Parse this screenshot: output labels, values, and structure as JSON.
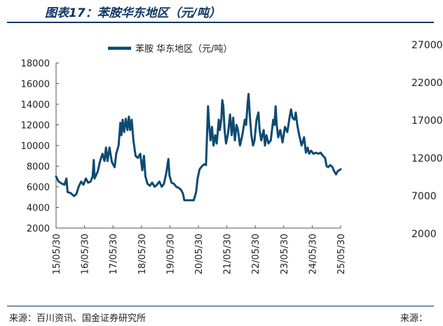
{
  "figure": {
    "title": "图表17：苯胺华东地区（元/吨）",
    "source_left": "来源：百川资讯、国金证券研究所",
    "source_right": "来源："
  },
  "clipped_neighbor_ticks": [
    "27000",
    "22000",
    "17000",
    "12000",
    "7000",
    "2000"
  ],
  "colors": {
    "series": "#0d4a72",
    "rule": "#0d3766"
  },
  "chart_data": {
    "type": "line",
    "title": "",
    "xlabel": "",
    "ylabel": "",
    "ylim": [
      2000,
      18000
    ],
    "yticks": [
      2000,
      4000,
      6000,
      8000,
      10000,
      12000,
      14000,
      16000,
      18000
    ],
    "xlim": [
      "2015-05-30",
      "2025-05-30"
    ],
    "xticks": [
      "15/05/30",
      "16/05/30",
      "17/05/30",
      "18/05/30",
      "19/05/30",
      "20/05/30",
      "21/05/30",
      "22/05/30",
      "23/05/30",
      "24/05/30",
      "25/05/30"
    ],
    "grid": false,
    "legend_position": "top-center",
    "series": [
      {
        "name": "苯胺 华东地区（元/吨）",
        "points": [
          [
            "2015-05-30",
            7000
          ],
          [
            "2015-07-01",
            6500
          ],
          [
            "2015-08-15",
            6300
          ],
          [
            "2015-09-15",
            6200
          ],
          [
            "2015-10-10",
            6800
          ],
          [
            "2015-10-25",
            5500
          ],
          [
            "2015-12-01",
            5400
          ],
          [
            "2016-01-15",
            5100
          ],
          [
            "2016-02-15",
            5300
          ],
          [
            "2016-03-15",
            6000
          ],
          [
            "2016-04-15",
            6500
          ],
          [
            "2016-05-15",
            6200
          ],
          [
            "2016-06-15",
            6800
          ],
          [
            "2016-07-15",
            6400
          ],
          [
            "2016-08-15",
            6500
          ],
          [
            "2016-09-10",
            7000
          ],
          [
            "2016-09-25",
            8600
          ],
          [
            "2016-10-05",
            6800
          ],
          [
            "2016-11-15",
            7500
          ],
          [
            "2016-12-15",
            8500
          ],
          [
            "2017-01-15",
            9200
          ],
          [
            "2017-02-10",
            8500
          ],
          [
            "2017-03-01",
            9800
          ],
          [
            "2017-03-20",
            8500
          ],
          [
            "2017-04-15",
            9800
          ],
          [
            "2017-05-15",
            8400
          ],
          [
            "2017-06-20",
            7900
          ],
          [
            "2017-07-10",
            9200
          ],
          [
            "2017-08-10",
            10000
          ],
          [
            "2017-09-01",
            12200
          ],
          [
            "2017-09-15",
            11000
          ],
          [
            "2017-10-01",
            12500
          ],
          [
            "2017-10-20",
            11300
          ],
          [
            "2017-11-10",
            12600
          ],
          [
            "2017-12-01",
            11500
          ],
          [
            "2017-12-20",
            12800
          ],
          [
            "2018-01-05",
            11500
          ],
          [
            "2018-01-25",
            12500
          ],
          [
            "2018-02-15",
            10500
          ],
          [
            "2018-03-15",
            9000
          ],
          [
            "2018-04-15",
            8800
          ],
          [
            "2018-05-15",
            9200
          ],
          [
            "2018-06-10",
            7600
          ],
          [
            "2018-07-01",
            9000
          ],
          [
            "2018-07-20",
            7000
          ],
          [
            "2018-08-15",
            6300
          ],
          [
            "2018-09-15",
            6100
          ],
          [
            "2018-10-15",
            6400
          ],
          [
            "2018-11-15",
            6000
          ],
          [
            "2018-12-15",
            6200
          ],
          [
            "2019-01-15",
            6500
          ],
          [
            "2019-02-15",
            6000
          ],
          [
            "2019-03-15",
            6300
          ],
          [
            "2019-04-15",
            7400
          ],
          [
            "2019-05-10",
            8700
          ],
          [
            "2019-05-25",
            7100
          ],
          [
            "2019-06-20",
            6400
          ],
          [
            "2019-07-20",
            6300
          ],
          [
            "2019-08-20",
            6000
          ],
          [
            "2019-09-20",
            5900
          ],
          [
            "2019-10-20",
            5700
          ],
          [
            "2019-11-15",
            5300
          ],
          [
            "2019-12-01",
            4700
          ],
          [
            "2020-01-15",
            4700
          ],
          [
            "2020-03-01",
            4700
          ],
          [
            "2020-04-01",
            4700
          ],
          [
            "2020-05-01",
            5500
          ],
          [
            "2020-05-20",
            6800
          ],
          [
            "2020-06-15",
            7700
          ],
          [
            "2020-07-15",
            8000
          ],
          [
            "2020-08-15",
            8200
          ],
          [
            "2020-09-05",
            8100
          ],
          [
            "2020-09-20",
            11500
          ],
          [
            "2020-10-01",
            13800
          ],
          [
            "2020-10-15",
            12000
          ],
          [
            "2020-11-01",
            10500
          ],
          [
            "2020-11-20",
            11800
          ],
          [
            "2020-12-10",
            10000
          ],
          [
            "2021-01-01",
            11000
          ],
          [
            "2021-01-20",
            10200
          ],
          [
            "2021-02-15",
            12500
          ],
          [
            "2021-03-01",
            11500
          ],
          [
            "2021-03-20",
            12500
          ],
          [
            "2021-04-01",
            14400
          ],
          [
            "2021-04-15",
            13800
          ],
          [
            "2021-05-01",
            11500
          ],
          [
            "2021-05-20",
            10200
          ],
          [
            "2021-06-15",
            11200
          ],
          [
            "2021-07-10",
            13000
          ],
          [
            "2021-08-01",
            11000
          ],
          [
            "2021-08-20",
            12700
          ],
          [
            "2021-09-10",
            10500
          ],
          [
            "2021-10-01",
            12000
          ],
          [
            "2021-10-20",
            11500
          ],
          [
            "2021-11-15",
            10000
          ],
          [
            "2021-12-15",
            11000
          ],
          [
            "2022-01-15",
            12500
          ],
          [
            "2022-02-01",
            12000
          ],
          [
            "2022-02-20",
            14000
          ],
          [
            "2022-03-05",
            15000
          ],
          [
            "2022-03-20",
            13000
          ],
          [
            "2022-04-10",
            11000
          ],
          [
            "2022-05-01",
            10000
          ],
          [
            "2022-05-20",
            10500
          ],
          [
            "2022-06-15",
            12500
          ],
          [
            "2022-07-10",
            13200
          ],
          [
            "2022-07-25",
            11500
          ],
          [
            "2022-08-15",
            10500
          ],
          [
            "2022-09-15",
            11500
          ],
          [
            "2022-10-01",
            10000
          ],
          [
            "2022-10-20",
            11000
          ],
          [
            "2022-11-15",
            10200
          ],
          [
            "2022-12-15",
            10500
          ],
          [
            "2023-01-15",
            12500
          ],
          [
            "2023-02-01",
            12000
          ],
          [
            "2023-02-15",
            13800
          ],
          [
            "2023-03-01",
            12000
          ],
          [
            "2023-03-20",
            10800
          ],
          [
            "2023-04-15",
            11500
          ],
          [
            "2023-05-15",
            10300
          ],
          [
            "2023-06-15",
            11800
          ],
          [
            "2023-07-15",
            11300
          ],
          [
            "2023-08-15",
            12800
          ],
          [
            "2023-09-01",
            13500
          ],
          [
            "2023-09-20",
            12700
          ],
          [
            "2023-10-15",
            12500
          ],
          [
            "2023-11-01",
            13200
          ],
          [
            "2023-11-20",
            12000
          ],
          [
            "2023-12-15",
            11000
          ],
          [
            "2024-01-15",
            10000
          ],
          [
            "2024-02-15",
            10800
          ],
          [
            "2024-03-10",
            9300
          ],
          [
            "2024-04-01",
            9800
          ],
          [
            "2024-04-20",
            9200
          ],
          [
            "2024-05-15",
            9500
          ],
          [
            "2024-06-15",
            9200
          ],
          [
            "2024-07-15",
            9300
          ],
          [
            "2024-08-15",
            9200
          ],
          [
            "2024-09-15",
            9300
          ],
          [
            "2024-10-15",
            9000
          ],
          [
            "2024-11-10",
            8800
          ],
          [
            "2024-12-01",
            8000
          ],
          [
            "2024-12-20",
            7900
          ],
          [
            "2025-01-15",
            8100
          ],
          [
            "2025-02-15",
            7900
          ],
          [
            "2025-03-01",
            7600
          ],
          [
            "2025-04-01",
            7200
          ],
          [
            "2025-04-20",
            7500
          ],
          [
            "2025-05-10",
            7600
          ],
          [
            "2025-05-30",
            7700
          ]
        ]
      }
    ]
  }
}
